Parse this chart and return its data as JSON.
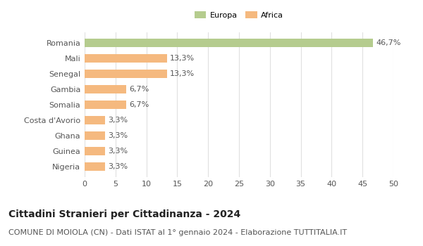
{
  "categories": [
    "Romania",
    "Mali",
    "Senegal",
    "Gambia",
    "Somalia",
    "Costa d'Avorio",
    "Ghana",
    "Guinea",
    "Nigeria"
  ],
  "values": [
    46.7,
    13.3,
    13.3,
    6.7,
    6.7,
    3.3,
    3.3,
    3.3,
    3.3
  ],
  "labels": [
    "46,7%",
    "13,3%",
    "13,3%",
    "6,7%",
    "6,7%",
    "3,3%",
    "3,3%",
    "3,3%",
    "3,3%"
  ],
  "colors": [
    "#b5cc8e",
    "#f5b97f",
    "#f5b97f",
    "#f5b97f",
    "#f5b97f",
    "#f5b97f",
    "#f5b97f",
    "#f5b97f",
    "#f5b97f"
  ],
  "legend_labels": [
    "Europa",
    "Africa"
  ],
  "legend_colors": [
    "#b5cc8e",
    "#f5b97f"
  ],
  "xlim": [
    0,
    50
  ],
  "xticks": [
    0,
    5,
    10,
    15,
    20,
    25,
    30,
    35,
    40,
    45,
    50
  ],
  "title": "Cittadini Stranieri per Cittadinanza - 2024",
  "subtitle": "COMUNE DI MOIOLA (CN) - Dati ISTAT al 1° gennaio 2024 - Elaborazione TUTTITALIA.IT",
  "bg_color": "#ffffff",
  "grid_color": "#e0e0e0",
  "bar_height": 0.55,
  "title_fontsize": 10,
  "subtitle_fontsize": 8,
  "label_fontsize": 8,
  "tick_fontsize": 8
}
